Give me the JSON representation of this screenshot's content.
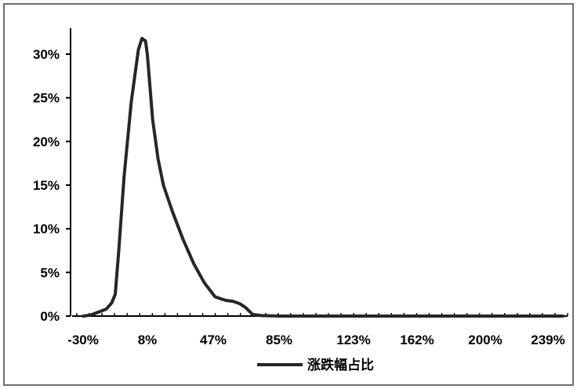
{
  "chart_data": {
    "type": "line",
    "title": "",
    "xlabel": "",
    "ylabel": "",
    "x_tick_labels": [
      "-30%",
      "8%",
      "47%",
      "85%",
      "123%",
      "162%",
      "200%",
      "239%"
    ],
    "x_ticks": [
      -30,
      8,
      47,
      85,
      123,
      162,
      200,
      239
    ],
    "xlim": [
      -30,
      239
    ],
    "y_tick_labels": [
      "0%",
      "5%",
      "10%",
      "15%",
      "20%",
      "25%",
      "30%"
    ],
    "y_ticks": [
      0,
      5,
      10,
      15,
      20,
      25,
      30
    ],
    "ylim": [
      0,
      33
    ],
    "grid": false,
    "legend_position": "bottom",
    "series": [
      {
        "name": "涨跌幅占比",
        "color": "#262626",
        "x": [
          -30,
          -26,
          -22,
          -17,
          -14,
          -12,
          -10,
          -7,
          -3,
          1,
          3,
          5,
          6,
          7,
          9,
          12,
          15,
          20,
          26,
          32,
          38,
          44,
          50,
          54,
          58,
          61,
          65,
          70,
          80,
          90,
          100,
          120,
          150,
          180,
          210,
          239
        ],
        "y": [
          0.0,
          0.1,
          0.4,
          0.8,
          1.5,
          2.5,
          7.5,
          16.0,
          24.5,
          30.5,
          31.8,
          31.5,
          30.0,
          27.5,
          22.5,
          18.0,
          15.0,
          12.0,
          8.8,
          6.0,
          3.8,
          2.2,
          1.8,
          1.7,
          1.4,
          1.0,
          0.2,
          0.05,
          0.0,
          0.0,
          0.0,
          0.0,
          0.0,
          0.0,
          0.0,
          0.0
        ]
      }
    ]
  }
}
